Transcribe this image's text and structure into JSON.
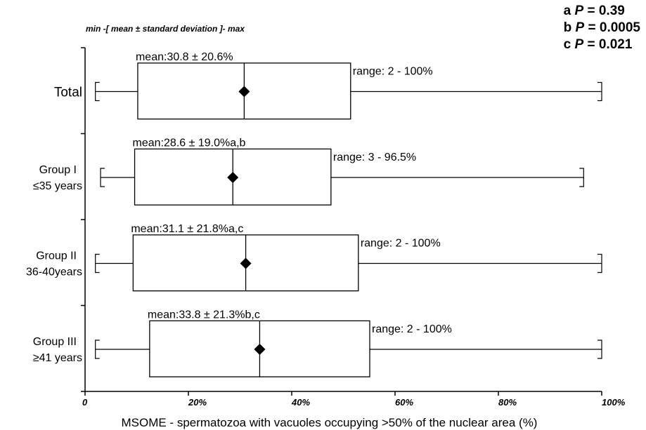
{
  "chart_data": {
    "type": "box",
    "subtitle": "min -[ mean ± standard deviation ]- max",
    "xlabel": "MSOME - spermatozoa with vacuoles occupying >50% of the nuclear area (%)",
    "xlim": [
      0,
      100
    ],
    "xticks": [
      {
        "value": 0,
        "label": "0"
      },
      {
        "value": 20,
        "label": "20%"
      },
      {
        "value": 40,
        "label": "40%"
      },
      {
        "value": 60,
        "label": "60%"
      },
      {
        "value": 80,
        "label": "80%"
      },
      {
        "value": 100,
        "label": "100%"
      }
    ],
    "grid": false,
    "groups": [
      {
        "label_lines": [
          "Total"
        ],
        "mean": 30.8,
        "sd": 20.6,
        "min": 2,
        "max": 100,
        "mean_label": "mean:30.8 ± 20.6%",
        "range_label": "range: 2 - 100%"
      },
      {
        "label_lines": [
          "Group I",
          "≤35 years"
        ],
        "mean": 28.6,
        "sd": 19.0,
        "min": 3,
        "max": 96.5,
        "mean_label": "mean:28.6 ± 19.0%a,b",
        "range_label": "range: 3 - 96.5%"
      },
      {
        "label_lines": [
          "Group II",
          "36-40years"
        ],
        "mean": 31.1,
        "sd": 21.8,
        "min": 2,
        "max": 100,
        "mean_label": "mean:31.1 ± 21.8%a,c",
        "range_label": "range: 2 - 100%"
      },
      {
        "label_lines": [
          "Group III",
          "≥41 years"
        ],
        "mean": 33.8,
        "sd": 21.3,
        "min": 2,
        "max": 100,
        "mean_label": "mean:33.8 ± 21.3%b,c",
        "range_label": "range: 2 - 100%"
      }
    ],
    "comparisons": [
      {
        "key": "a",
        "p_label": "P",
        "value": "= 0.39"
      },
      {
        "key": "b",
        "p_label": "P",
        "value": "= 0.0005"
      },
      {
        "key": "c",
        "p_label": "P",
        "value": "= 0.021"
      }
    ]
  }
}
